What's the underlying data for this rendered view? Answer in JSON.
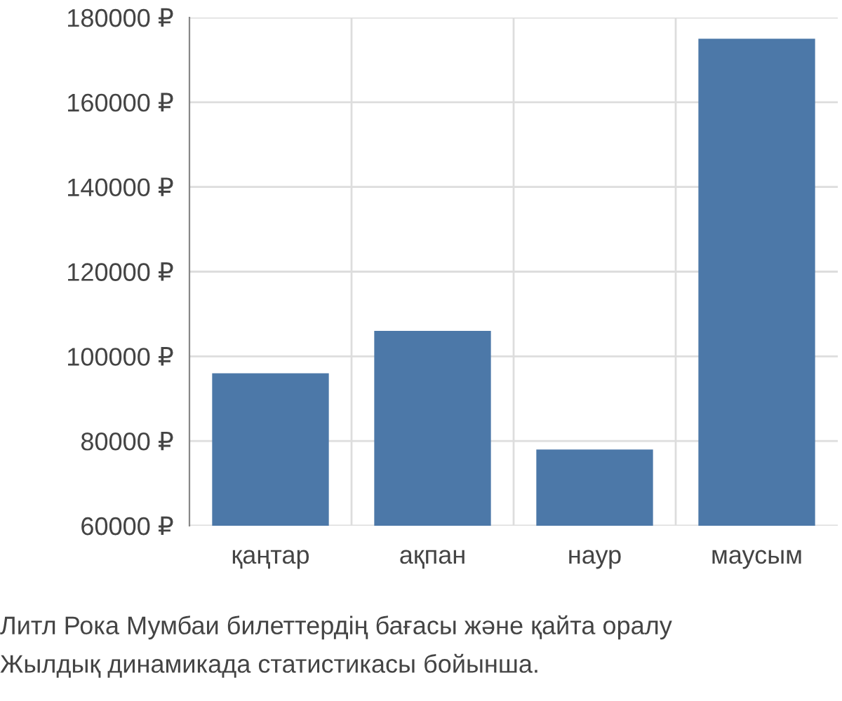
{
  "chart_data": {
    "type": "bar",
    "categories": [
      "қаңтар",
      "ақпан",
      "наур",
      "маусым"
    ],
    "values": [
      96000,
      106000,
      78000,
      175000
    ],
    "color": "#4c78a8",
    "ylim": [
      60000,
      180000
    ],
    "yticks": [
      {
        "value": 60000,
        "label": "60000 ₽"
      },
      {
        "value": 80000,
        "label": "80000 ₽"
      },
      {
        "value": 100000,
        "label": "100000 ₽"
      },
      {
        "value": 120000,
        "label": "120000 ₽"
      },
      {
        "value": 140000,
        "label": "140000 ₽"
      },
      {
        "value": 160000,
        "label": "160000 ₽"
      },
      {
        "value": 180000,
        "label": "180000 ₽"
      }
    ],
    "grid": true,
    "annotations": [
      "Литл Рока Мумбаи билеттердің бағасы және қайта оралу",
      "Жылдық динамикада статистикасы бойынша."
    ]
  }
}
